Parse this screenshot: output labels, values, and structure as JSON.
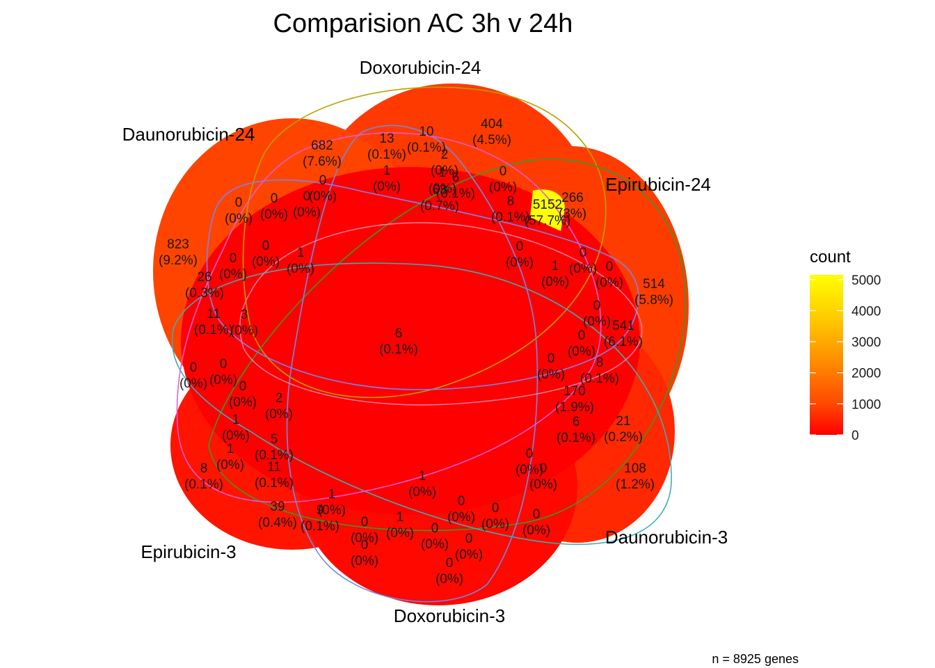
{
  "chart_data": {
    "type": "venn",
    "title": "Comparision AC 3h v 24h",
    "caption": "n = 8925 genes",
    "sets": [
      "Doxorubicin-24",
      "Epirubicin-24",
      "Daunorubicin-3",
      "Doxorubicin-3",
      "Epirubicin-3",
      "Daunorubicin-24"
    ],
    "legend": {
      "title": "count",
      "ticks": [
        0,
        1000,
        2000,
        3000,
        4000,
        5000
      ],
      "range": [
        0,
        5152
      ],
      "low_color": "#FF0000",
      "high_color": "#FFFF00",
      "placement": "right"
    },
    "regions": [
      {
        "count": "404",
        "percent": "(4.5%)"
      },
      {
        "count": "10",
        "percent": "(0.1%)"
      },
      {
        "count": "13",
        "percent": "(0.1%)"
      },
      {
        "count": "682",
        "percent": "(7.6%)"
      },
      {
        "count": "2",
        "percent": "(0%)"
      },
      {
        "count": "0",
        "percent": "(0%)"
      },
      {
        "count": "1",
        "percent": "(0%)"
      },
      {
        "count": "1",
        "percent": "(0%)"
      },
      {
        "count": "6",
        "percent": "(0.1%)"
      },
      {
        "count": "0",
        "percent": "(0%)"
      },
      {
        "count": "63",
        "percent": "(0.7%)"
      },
      {
        "count": "5152",
        "percent": "(57.7%)"
      },
      {
        "count": "266",
        "percent": "(3%)"
      },
      {
        "count": "8",
        "percent": "(0.1%)"
      },
      {
        "count": "0",
        "percent": "(0%)"
      },
      {
        "count": "0",
        "percent": "(0%)"
      },
      {
        "count": "0",
        "percent": "(0%)"
      },
      {
        "count": "823",
        "percent": "(9.2%)"
      },
      {
        "count": "0",
        "percent": "(0%)"
      },
      {
        "count": "0",
        "percent": "(0%)"
      },
      {
        "count": "1",
        "percent": "(0%)"
      },
      {
        "count": "26",
        "percent": "(0.3%)"
      },
      {
        "count": "0",
        "percent": "(0%)"
      },
      {
        "count": "1",
        "percent": "(0%)"
      },
      {
        "count": "0",
        "percent": "(0%)"
      },
      {
        "count": "0",
        "percent": "(0%)"
      },
      {
        "count": "514",
        "percent": "(5.8%)"
      },
      {
        "count": "0",
        "percent": "(0%)"
      },
      {
        "count": "541",
        "percent": "(6.1%)"
      },
      {
        "count": "11",
        "percent": "(0.1%)"
      },
      {
        "count": "3",
        "percent": "(0%)"
      },
      {
        "count": "6",
        "percent": "(0.1%)"
      },
      {
        "count": "0",
        "percent": "(0%)"
      },
      {
        "count": "8",
        "percent": "(0.1%)"
      },
      {
        "count": "0",
        "percent": "(0%)"
      },
      {
        "count": "0",
        "percent": "(0%)"
      },
      {
        "count": "0",
        "percent": "(0%)"
      },
      {
        "count": "0",
        "percent": "(0%)"
      },
      {
        "count": "170",
        "percent": "(1.9%)"
      },
      {
        "count": "2",
        "percent": "(0%)"
      },
      {
        "count": "6",
        "percent": "(0.1%)"
      },
      {
        "count": "21",
        "percent": "(0.2%)"
      },
      {
        "count": "1",
        "percent": "(0%)"
      },
      {
        "count": "1",
        "percent": "(0%)"
      },
      {
        "count": "5",
        "percent": "(0.1%)"
      },
      {
        "count": "8",
        "percent": "(0.1%)"
      },
      {
        "count": "11",
        "percent": "(0.1%)"
      },
      {
        "count": "1",
        "percent": "(0%)"
      },
      {
        "count": "0",
        "percent": "(0%)"
      },
      {
        "count": "0",
        "percent": "(0%)"
      },
      {
        "count": "108",
        "percent": "(1.2%)"
      },
      {
        "count": "39",
        "percent": "(0.4%)"
      },
      {
        "count": "1",
        "percent": "(0%)"
      },
      {
        "count": "9",
        "percent": "(0.1%)"
      },
      {
        "count": "0",
        "percent": "(0%)"
      },
      {
        "count": "1",
        "percent": "(0%)"
      },
      {
        "count": "0",
        "percent": "(0%)"
      },
      {
        "count": "0",
        "percent": "(0%)"
      },
      {
        "count": "0",
        "percent": "(0%)"
      },
      {
        "count": "0",
        "percent": "(0%)"
      },
      {
        "count": "0",
        "percent": "(0%)"
      },
      {
        "count": "0",
        "percent": "(0%)"
      },
      {
        "count": "0",
        "percent": "(0%)"
      }
    ]
  }
}
